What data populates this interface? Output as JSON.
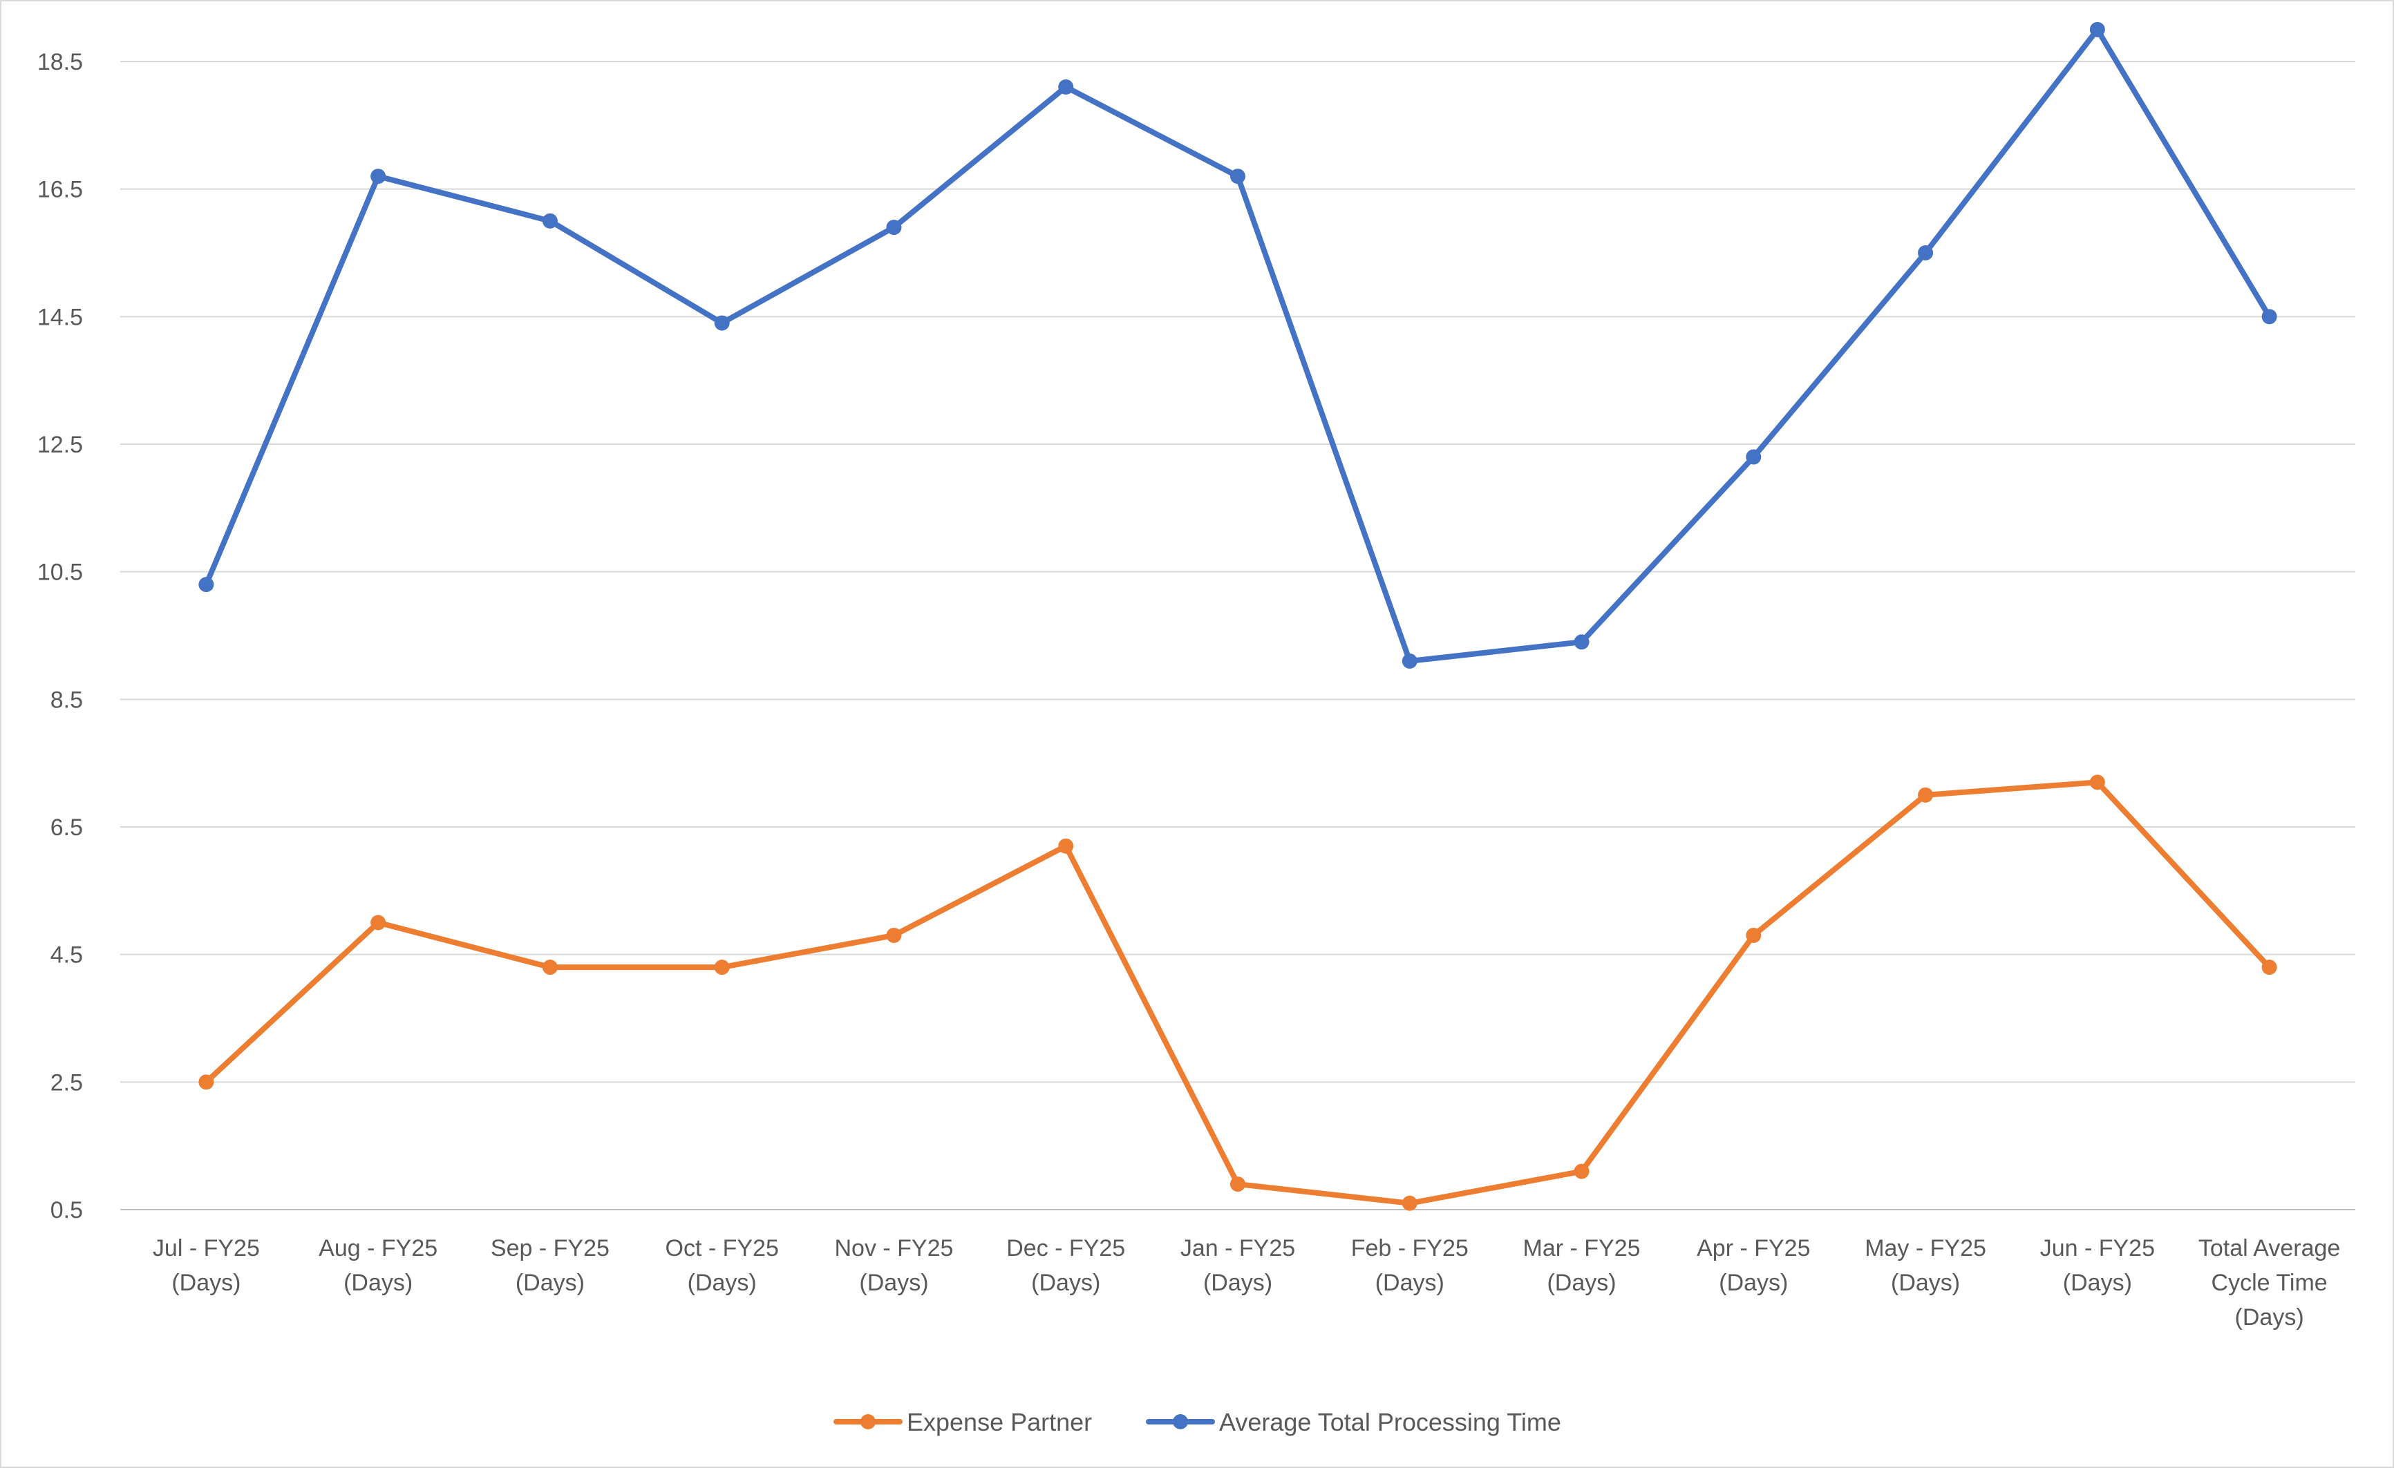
{
  "chart_data": {
    "type": "line",
    "title": "",
    "xlabel": "",
    "ylabel": "",
    "categories": [
      [
        "Jul - FY25",
        "(Days)"
      ],
      [
        "Aug - FY25",
        "(Days)"
      ],
      [
        "Sep - FY25",
        "(Days)"
      ],
      [
        "Oct - FY25",
        "(Days)"
      ],
      [
        "Nov - FY25",
        "(Days)"
      ],
      [
        "Dec - FY25",
        "(Days)"
      ],
      [
        "Jan - FY25",
        "(Days)"
      ],
      [
        "Feb - FY25",
        "(Days)"
      ],
      [
        "Mar - FY25",
        "(Days)"
      ],
      [
        "Apr - FY25",
        "(Days)"
      ],
      [
        "May - FY25",
        "(Days)"
      ],
      [
        "Jun - FY25",
        "(Days)"
      ],
      [
        "Total Average",
        "Cycle Time",
        "(Days)"
      ]
    ],
    "y_ticks": [
      "0.5",
      "2.5",
      "4.5",
      "6.5",
      "8.5",
      "10.5",
      "12.5",
      "14.5",
      "16.5",
      "18.5"
    ],
    "ylim": [
      0.5,
      18.5
    ],
    "grid": true,
    "legend_position": "bottom",
    "series": [
      {
        "name": "Expense Partner",
        "color": "#ed7d31",
        "values": [
          2.5,
          5.0,
          4.3,
          4.3,
          4.8,
          6.2,
          0.9,
          0.6,
          1.1,
          4.8,
          7.0,
          7.2,
          4.3
        ]
      },
      {
        "name": "Average Total Processing Time",
        "color": "#4472c4",
        "values": [
          10.3,
          16.7,
          16.0,
          14.4,
          15.9,
          18.1,
          16.7,
          9.1,
          9.4,
          12.3,
          15.5,
          19.0,
          14.5
        ]
      }
    ]
  }
}
